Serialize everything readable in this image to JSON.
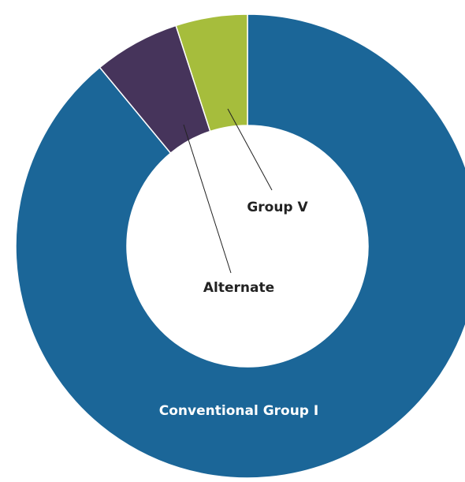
{
  "chart_data": {
    "type": "donut",
    "categories": [
      "Conventional Group I",
      "Alternate",
      "Group V"
    ],
    "values": [
      89,
      6,
      5
    ],
    "colors": [
      "#1b6698",
      "#46345b",
      "#a6bd3c"
    ]
  }
}
